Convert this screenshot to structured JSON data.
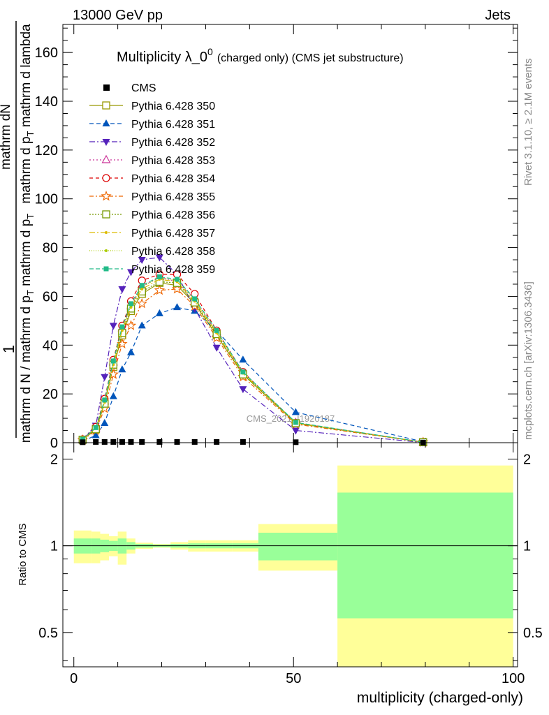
{
  "header": {
    "energy_label": "13000 GeV pp",
    "category_label": "Jets"
  },
  "side": {
    "rivet_label": "Rivet 3.1.10, ≥ 2.1M events",
    "mcplots_label": "mcplots.cern.ch [arXiv:1306.3436]"
  },
  "colors": {
    "cms": "#000000",
    "band_inner": "#99ff99",
    "band_outer": "#ffff99"
  },
  "chart_data": [
    {
      "type": "line",
      "title_main": "Multiplicity λ_0",
      "title_sup": "0",
      "title_sub": "(charged only) (CMS jet substructure)",
      "ylabel_top": "1",
      "ylabel_num": "mathrm dN",
      "ylabel_den": "mathrm d N / mathrm d p_T mathrm d p_T mathrm d lambda",
      "watermark": "CMS_2021_I1920187",
      "xlim": [
        -2.5,
        101
      ],
      "ylim": [
        0,
        171.5
      ],
      "yticks": [
        0,
        20,
        40,
        60,
        80,
        100,
        120,
        140,
        160
      ],
      "legend_position": "top-left",
      "x": [
        2,
        5,
        7,
        9,
        11,
        13,
        15.5,
        19.5,
        23.5,
        27.5,
        32.5,
        38.5,
        50.5,
        79.5
      ],
      "cms": {
        "name": "CMS",
        "values": [
          0.2,
          0.3,
          0.3,
          0.3,
          0.3,
          0.3,
          0.3,
          0.3,
          0.3,
          0.3,
          0.3,
          0.3,
          0.2,
          0.05
        ]
      },
      "series": [
        {
          "name": "Pythia 6.428 350",
          "color": "#999900",
          "marker": "square-open",
          "dash": "",
          "values": [
            1.2,
            5.5,
            16,
            31,
            44,
            54,
            61,
            65.5,
            64.5,
            57,
            44,
            28,
            8,
            0.2
          ]
        },
        {
          "name": "Pythia 6.428 351",
          "color": "#0055bb",
          "marker": "triangle-filled",
          "dash": "6,4",
          "values": [
            0.6,
            3,
            8,
            19,
            30,
            37,
            48,
            53,
            55.5,
            54,
            46,
            34,
            12.5,
            0.4
          ]
        },
        {
          "name": "Pythia 6.428 352",
          "color": "#5522bb",
          "marker": "triangle-down-filled",
          "dash": "8,3,2,3",
          "values": [
            1.5,
            7,
            27,
            48,
            63,
            70,
            75,
            76,
            69,
            55,
            39,
            22,
            5,
            0.1
          ]
        },
        {
          "name": "Pythia 6.428 353",
          "color": "#cc3399",
          "marker": "triangle-open",
          "dash": "2,3",
          "values": [
            1.3,
            6,
            17,
            33,
            47,
            56,
            64,
            68,
            66,
            59,
            45,
            28.5,
            8.2,
            0.2
          ]
        },
        {
          "name": "Pythia 6.428 354",
          "color": "#dd0000",
          "marker": "circle-open",
          "dash": "5,4",
          "values": [
            1.4,
            6.5,
            18,
            34,
            48,
            58,
            66.5,
            69,
            69,
            61,
            46,
            29,
            8.1,
            0.2
          ]
        },
        {
          "name": "Pythia 6.428 355",
          "color": "#ee6600",
          "marker": "star-open",
          "dash": "6,3,2,3",
          "values": [
            1.1,
            5,
            14,
            28,
            40.5,
            48,
            57,
            62.5,
            63,
            56,
            43,
            27,
            7.6,
            0.2
          ]
        },
        {
          "name": "Pythia 6.428 356",
          "color": "#779900",
          "marker": "square-open",
          "dash": "2,2",
          "values": [
            1.2,
            5.5,
            16,
            32,
            45,
            55,
            62,
            66,
            65.5,
            57.5,
            44.5,
            28,
            8,
            0.2
          ]
        },
        {
          "name": "Pythia 6.428 357",
          "color": "#ddbb00",
          "marker": "dot",
          "dash": "8,3,2,3",
          "values": [
            1.3,
            6,
            16.5,
            32,
            46,
            55.5,
            63,
            67,
            66,
            58,
            45,
            28.5,
            8.1,
            0.2
          ]
        },
        {
          "name": "Pythia 6.428 358",
          "color": "#aacc00",
          "marker": "dot",
          "dash": "1,2",
          "values": [
            1.3,
            6,
            17,
            33,
            47,
            56,
            64,
            67.5,
            66.5,
            58.5,
            45.5,
            28.5,
            8.2,
            0.2
          ]
        },
        {
          "name": "Pythia 6.428 359",
          "color": "#22bb88",
          "marker": "square-filled",
          "dash": "6,3",
          "values": [
            1.4,
            6.2,
            17.5,
            33.5,
            47.5,
            57,
            64.5,
            68,
            67,
            59,
            46,
            29,
            8.3,
            0.2
          ]
        }
      ]
    },
    {
      "type": "area",
      "ylabel": "Ratio to CMS",
      "xlabel": "multiplicity (charged-only)",
      "xlim": [
        -2.5,
        101
      ],
      "ylim": [
        0.38,
        2.28
      ],
      "yscale": "log",
      "yticks": [
        0.5,
        1,
        2
      ],
      "xticks": [
        0,
        50,
        100
      ],
      "bin_edges": [
        0,
        4,
        6,
        8,
        10,
        12,
        14,
        18,
        22,
        26,
        30,
        36,
        42,
        60,
        100
      ],
      "inner_band": {
        "lower": [
          0.94,
          0.94,
          0.95,
          0.96,
          0.94,
          0.97,
          0.985,
          0.99,
          0.985,
          0.98,
          0.98,
          0.98,
          0.89,
          0.56
        ],
        "upper": [
          1.06,
          1.06,
          1.05,
          1.04,
          1.06,
          1.03,
          1.015,
          1.01,
          1.015,
          1.02,
          1.02,
          1.02,
          1.11,
          1.53
        ]
      },
      "outer_band": {
        "lower": [
          0.87,
          0.87,
          0.89,
          0.92,
          0.86,
          0.94,
          0.975,
          0.985,
          0.97,
          0.955,
          0.955,
          0.955,
          0.82,
          0.33
        ],
        "upper": [
          1.13,
          1.12,
          1.1,
          1.08,
          1.12,
          1.06,
          1.025,
          1.015,
          1.03,
          1.045,
          1.045,
          1.045,
          1.19,
          1.9
        ]
      },
      "reference": 1
    }
  ]
}
